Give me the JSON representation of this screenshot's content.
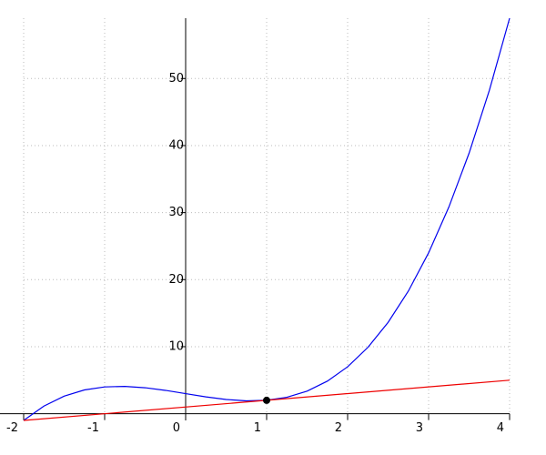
{
  "chart_data": {
    "type": "line",
    "xlim": [
      -2,
      4
    ],
    "ylim": [
      -1,
      59
    ],
    "xticks": [
      -2,
      -1,
      0,
      1,
      2,
      3,
      4
    ],
    "yticks": [
      10,
      20,
      30,
      40,
      50
    ],
    "grid": true,
    "series": [
      {
        "color": "#0000ee",
        "x": [
          -2,
          -1.75,
          -1.5,
          -1.25,
          -1,
          -0.75,
          -0.5,
          -0.25,
          0,
          0.25,
          0.5,
          0.75,
          1,
          1.25,
          1.5,
          1.75,
          2,
          2.25,
          2.5,
          2.75,
          3,
          3.25,
          3.5,
          3.75,
          4
        ],
        "values": [
          -1,
          1.141,
          2.625,
          3.547,
          4,
          4.078,
          3.875,
          3.484,
          3,
          2.516,
          2.125,
          1.922,
          2,
          2.453,
          3.375,
          4.859,
          7,
          9.891,
          13.625,
          18.297,
          24,
          30.828,
          38.875,
          48.234,
          59
        ]
      },
      {
        "color": "#ee0000",
        "x": [
          -2,
          4
        ],
        "values": [
          -1,
          5
        ]
      },
      {
        "color": "#000000",
        "marker": "point",
        "x": [
          1
        ],
        "values": [
          2
        ]
      }
    ]
  }
}
